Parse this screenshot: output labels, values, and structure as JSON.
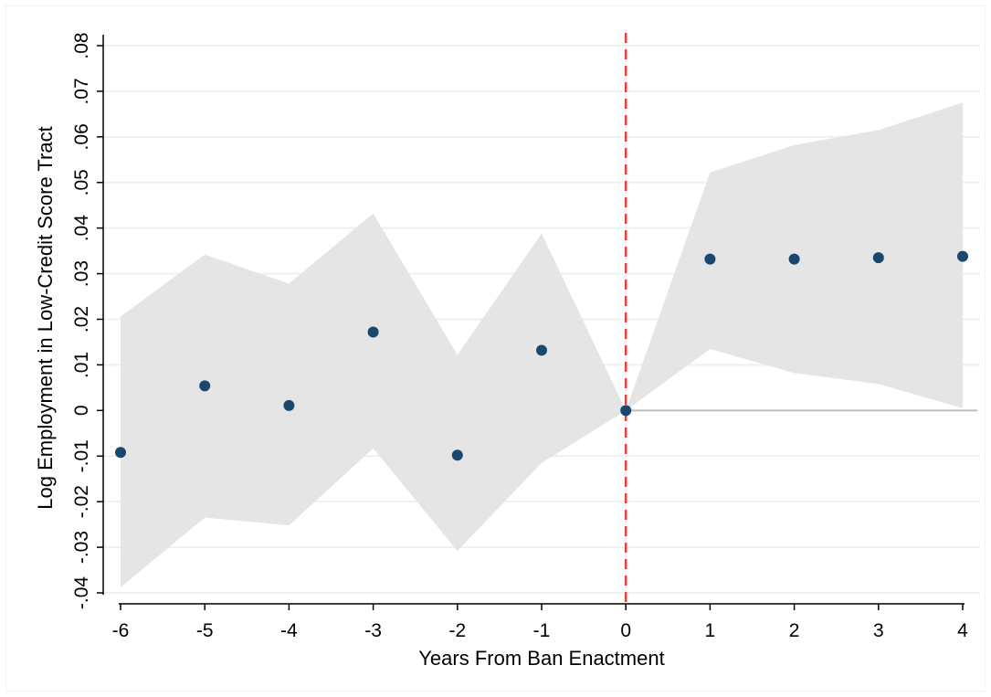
{
  "chart_data": {
    "type": "scatter",
    "title": "",
    "xlabel": "Years From Ban Enactment",
    "ylabel": "Log Employment in Low-Credit Score Tract",
    "xlim": [
      -6,
      4
    ],
    "ylim": [
      -0.04,
      0.08
    ],
    "x_ticks": [
      {
        "value": -6,
        "label": "-6"
      },
      {
        "value": -5,
        "label": "-5"
      },
      {
        "value": -4,
        "label": "-4"
      },
      {
        "value": -3,
        "label": "-3"
      },
      {
        "value": -2,
        "label": "-2"
      },
      {
        "value": -1,
        "label": "-1"
      },
      {
        "value": 0,
        "label": "0"
      },
      {
        "value": 1,
        "label": "1"
      },
      {
        "value": 2,
        "label": "2"
      },
      {
        "value": 3,
        "label": "3"
      },
      {
        "value": 4,
        "label": "4"
      }
    ],
    "y_ticks": [
      {
        "value": -0.04,
        "label": "-.04"
      },
      {
        "value": -0.03,
        "label": "-.03"
      },
      {
        "value": -0.02,
        "label": "-.02"
      },
      {
        "value": -0.01,
        "label": "-.01"
      },
      {
        "value": 0,
        "label": "0"
      },
      {
        "value": 0.01,
        "label": ".01"
      },
      {
        "value": 0.02,
        "label": ".02"
      },
      {
        "value": 0.03,
        "label": ".03"
      },
      {
        "value": 0.04,
        "label": ".04"
      },
      {
        "value": 0.05,
        "label": ".05"
      },
      {
        "value": 0.06,
        "label": ".06"
      },
      {
        "value": 0.07,
        "label": ".07"
      },
      {
        "value": 0.08,
        "label": ".08"
      }
    ],
    "grid": true,
    "zero_line": true,
    "event_line_x": 0,
    "series": [
      {
        "x": [
          -6,
          -5,
          -4,
          -3,
          -2,
          -1,
          0,
          1,
          2,
          3,
          4
        ],
        "y": [
          -0.0092,
          0.0054,
          0.0011,
          0.0172,
          -0.0098,
          0.0132,
          0.0,
          0.0332,
          0.0332,
          0.0335,
          0.0338
        ],
        "ci_lower": [
          -0.0388,
          -0.0235,
          -0.0252,
          -0.0083,
          -0.0308,
          -0.0115,
          0.0,
          0.0135,
          0.0082,
          0.0058,
          0.0005
        ],
        "ci_upper": [
          0.0206,
          0.0342,
          0.0278,
          0.0432,
          0.0122,
          0.0388,
          0.0,
          0.0522,
          0.0582,
          0.0615,
          0.0675
        ]
      }
    ],
    "colors": {
      "marker": "#1a476f",
      "ci_band": "#e5e5e5",
      "grid": "#eaf2f3",
      "event_line": "#e8403a",
      "zero_line": "#bdbdbd",
      "axis": "#000000"
    }
  }
}
